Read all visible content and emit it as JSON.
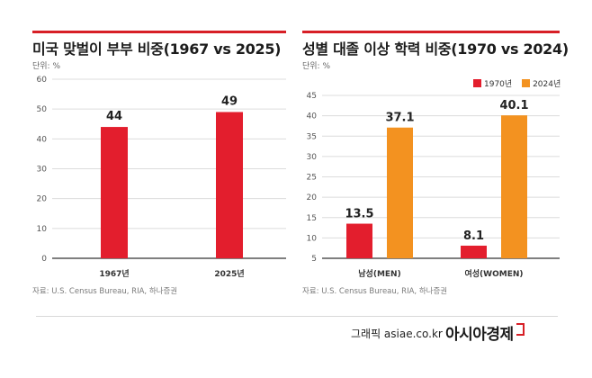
{
  "colors": {
    "red": "#e31e2d",
    "orange": "#f39220",
    "accent": "#d71f26"
  },
  "left": {
    "title": "미국 맞벌이 부부 비중(1967 vs 2025)",
    "unit": "단위: %",
    "source": "자료: U.S. Census Bureau, RIA, 하나증권"
  },
  "right": {
    "title": "성별 대졸 이상 학력 비중(1970 vs 2024)",
    "unit": "단위: %",
    "source": "자료: U.S. Census Bureau, RIA, 하나증권"
  },
  "footer": {
    "credit": "그래픽 asiae.co.kr",
    "brand": "아시아경제"
  },
  "chart_data": [
    {
      "type": "bar",
      "title": "미국 맞벌이 부부 비중(1967 vs 2025)",
      "categories": [
        "1967년",
        "2025년"
      ],
      "values": [
        44,
        49
      ],
      "ylim": [
        0,
        60
      ],
      "yticks": [
        0,
        10,
        20,
        30,
        40,
        50,
        60
      ],
      "grid": true
    },
    {
      "type": "bar",
      "title": "성별 대졸 이상 학력 비중(1970 vs 2024)",
      "categories": [
        "남성(MEN)",
        "여성(WOMEN)"
      ],
      "series": [
        {
          "name": "1970년",
          "values": [
            13.5,
            8.1
          ]
        },
        {
          "name": "2024년",
          "values": [
            37.1,
            40.1
          ]
        }
      ],
      "ylim": [
        5,
        45
      ],
      "yticks": [
        5,
        10,
        15,
        20,
        25,
        30,
        35,
        40,
        45
      ],
      "grid": true,
      "legend": "top-right"
    }
  ]
}
